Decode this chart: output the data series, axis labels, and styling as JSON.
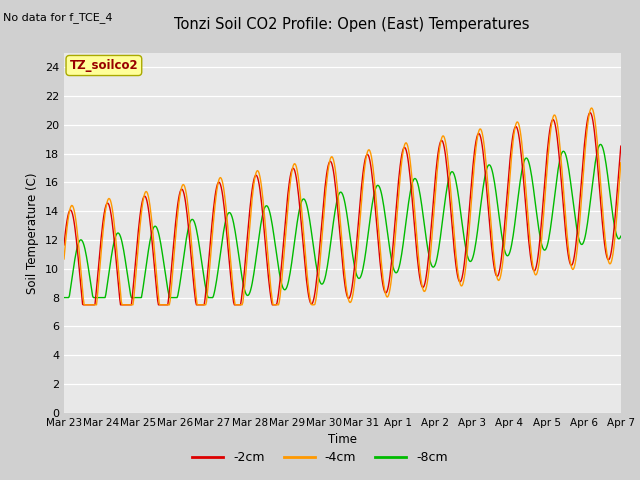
{
  "title": "Tonzi Soil CO2 Profile: Open (East) Temperatures",
  "subtitle": "No data for f_TCE_4",
  "ylabel": "Soil Temperature (C)",
  "xlabel": "Time",
  "legend_label": "TZ_soilco2",
  "series_labels": [
    "-2cm",
    "-4cm",
    "-8cm"
  ],
  "series_colors": [
    "#dd0000",
    "#ff9900",
    "#00bb00"
  ],
  "ylim": [
    0,
    25
  ],
  "yticks": [
    0,
    2,
    4,
    6,
    8,
    10,
    12,
    14,
    16,
    18,
    20,
    22,
    24
  ],
  "fig_bg": "#d0d0d0",
  "ax_bg": "#e8e8e8",
  "n_days": 15,
  "n_pts": 720,
  "xtick_labels": [
    "Mar 23",
    "Mar 24",
    "Mar 25",
    "Mar 26",
    "Mar 27",
    "Mar 28",
    "Mar 29",
    "Mar 30",
    "Mar 31",
    "Apr 1",
    "Apr 2",
    "Apr 3",
    "Apr 4",
    "Apr 5",
    "Apr 6",
    "Apr 7"
  ]
}
